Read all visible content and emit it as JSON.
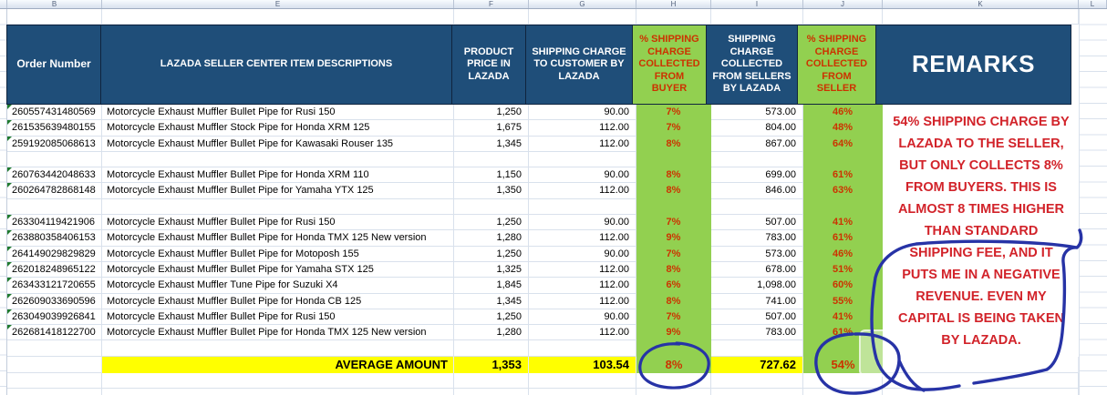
{
  "column_letters": [
    "",
    "B",
    "E",
    "F",
    "G",
    "H",
    "I",
    "J",
    "K",
    "L"
  ],
  "header": {
    "order": "Order Number",
    "desc": "LAZADA SELLER CENTER ITEM DESCRIPTIONS",
    "price": "PRODUCT PRICE IN LAZADA",
    "ship": "SHIPPING CHARGE TO CUSTOMER BY LAZADA",
    "pct_buyer": "% SHIPPING CHARGE COLLECTED FROM BUYER",
    "seller_charge": "SHIPPING CHARGE COLLECTED FROM SELLERS BY LAZADA",
    "pct_seller": "% SHIPPING CHARGE COLLECTED FROM SELLER",
    "remarks": "REMARKS"
  },
  "rows": [
    {
      "order": "260557431480569",
      "desc": "Motorcycle Exhaust Muffler Bullet Pipe for Rusi 150",
      "price": "1,250",
      "ship": "90.00",
      "pct_buyer": "7%",
      "seller_charge": "573.00",
      "pct_seller": "46%"
    },
    {
      "order": "261535639480155",
      "desc": "Motorcycle Exhaust Muffler Stock Pipe for Honda XRM 125",
      "price": "1,675",
      "ship": "112.00",
      "pct_buyer": "7%",
      "seller_charge": "804.00",
      "pct_seller": "48%"
    },
    {
      "order": "259192085068613",
      "desc": "Motorcycle Exhaust Muffler Bullet Pipe for Kawasaki Rouser 135",
      "price": "1,345",
      "ship": "112.00",
      "pct_buyer": "8%",
      "seller_charge": "867.00",
      "pct_seller": "64%"
    },
    {
      "empty": true
    },
    {
      "order": "260763442048633",
      "desc": "Motorcycle Exhaust Muffler Bullet Pipe for Honda XRM 110",
      "price": "1,150",
      "ship": "90.00",
      "pct_buyer": "8%",
      "seller_charge": "699.00",
      "pct_seller": "61%"
    },
    {
      "order": "260264782868148",
      "desc": "Motorcycle Exhaust Muffler Bullet Pipe for Yamaha YTX 125",
      "price": "1,350",
      "ship": "112.00",
      "pct_buyer": "8%",
      "seller_charge": "846.00",
      "pct_seller": "63%"
    },
    {
      "empty": true
    },
    {
      "order": "263304119421906",
      "desc": "Motorcycle Exhaust Muffler Bullet Pipe for Rusi 150",
      "price": "1,250",
      "ship": "90.00",
      "pct_buyer": "7%",
      "seller_charge": "507.00",
      "pct_seller": "41%"
    },
    {
      "order": "263880358406153",
      "desc": "Motorcycle Exhaust Muffler Bullet Pipe for Honda TMX 125 New version",
      "price": "1,280",
      "ship": "112.00",
      "pct_buyer": "9%",
      "seller_charge": "783.00",
      "pct_seller": "61%"
    },
    {
      "order": "264149029829829",
      "desc": "Motorcycle Exhaust Muffler Bullet Pipe for Motoposh 155",
      "price": "1,250",
      "ship": "90.00",
      "pct_buyer": "7%",
      "seller_charge": "573.00",
      "pct_seller": "46%"
    },
    {
      "order": "262018248965122",
      "desc": "Motorcycle Exhaust Muffler Bullet Pipe for Yamaha STX 125",
      "price": "1,325",
      "ship": "112.00",
      "pct_buyer": "8%",
      "seller_charge": "678.00",
      "pct_seller": "51%"
    },
    {
      "order": "263433121720655",
      "desc": "Motorcycle Exhaust Muffler Tune Pipe for Suzuki X4",
      "price": "1,845",
      "ship": "112.00",
      "pct_buyer": "6%",
      "seller_charge": "1,098.00",
      "pct_seller": "60%"
    },
    {
      "order": "262609033690596",
      "desc": "Motorcycle Exhaust Muffler Bullet Pipe for Honda CB 125",
      "price": "1,345",
      "ship": "112.00",
      "pct_buyer": "8%",
      "seller_charge": "741.00",
      "pct_seller": "55%"
    },
    {
      "order": "263049039926841",
      "desc": "Motorcycle Exhaust Muffler Bullet Pipe for Rusi 150",
      "price": "1,250",
      "ship": "90.00",
      "pct_buyer": "7%",
      "seller_charge": "507.00",
      "pct_seller": "41%"
    },
    {
      "order": "262681418122700",
      "desc": "Motorcycle Exhaust Muffler Bullet Pipe for Honda TMX 125 New version",
      "price": "1,280",
      "ship": "112.00",
      "pct_buyer": "9%",
      "seller_charge": "783.00",
      "pct_seller": "61%"
    },
    {
      "empty": true
    }
  ],
  "summary": {
    "label": "AVERAGE AMOUNT",
    "price": "1,353",
    "ship": "103.54",
    "pct_buyer": "8%",
    "seller_charge": "727.62",
    "pct_seller": "54%"
  },
  "remarks": {
    "lines": [
      "54% SHIPPING CHARGE BY",
      "LAZADA TO THE SELLER,",
      "BUT ONLY COLLECTS 8%",
      "FROM BUYERS.  THIS IS",
      "ALMOST 8 TIMES HIGHER",
      "THAN STANDARD",
      "SHIPPING FEE, AND IT",
      "PUTS ME IN A NEGATIVE",
      "REVENUE.  EVEN MY",
      "CAPITAL IS BEING TAKEN",
      "BY LAZADA."
    ]
  },
  "colors": {
    "header_blue": "#1F4E79",
    "highlight_green": "#92D050",
    "highlight_yellow": "#FFFF00",
    "percent_red": "#CC3300",
    "remarks_red": "#D2232A",
    "ink_blue": "#2733A6"
  }
}
